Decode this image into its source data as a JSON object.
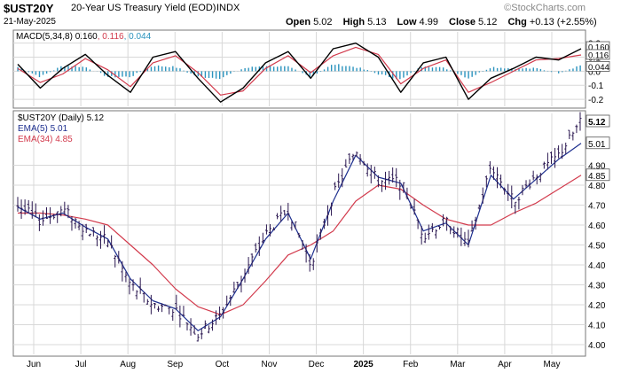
{
  "header": {
    "symbol": "$UST20Y",
    "description": "20-Year US Treasury Yield (EOD)",
    "exchange": "INDX",
    "date": "21-May-2025",
    "watermark": "©StockCharts.com",
    "stats": {
      "open_label": "Open",
      "open": "5.02",
      "high_label": "High",
      "high": "5.13",
      "low_label": "Low",
      "low": "4.99",
      "close_label": "Close",
      "close": "5.12",
      "chg_label": "Chg",
      "chg": "+0.13 (+2.55%)"
    }
  },
  "macd_legend": {
    "label": "MACD(5,34,8)",
    "macd": "0.160",
    "signal": "0.116",
    "hist": "0.044"
  },
  "price_legend": {
    "label": "$UST20Y (Daily) 5.12",
    "ema5": "EMA(5) 5.01",
    "ema34": "EMA(34) 4.85"
  },
  "colors": {
    "bars": "#2a1750",
    "ema5": "#1d2f8f",
    "ema34": "#d23a4c",
    "macd": "#000000",
    "signal": "#d23a4c",
    "hist": "#2b93be",
    "grid": "#d8d8d8"
  },
  "chart_data": [
    {
      "type": "line",
      "title": "MACD(5,34,8)",
      "y_ticks": [
        "0.2",
        "0.1",
        "0.0",
        "-0.1",
        "-0.2"
      ],
      "ylim": [
        -0.25,
        0.28
      ],
      "right_labels": [
        "0.160",
        "0.116",
        "0.044"
      ],
      "series": [
        {
          "name": "MACD",
          "x": [
            0,
            10,
            20,
            30,
            40,
            50,
            60,
            70,
            80,
            90,
            100,
            110,
            120,
            130,
            140,
            150,
            160,
            170,
            180,
            190,
            200,
            210,
            220,
            230,
            240,
            250
          ],
          "values": [
            0.05,
            -0.12,
            0.02,
            0.12,
            -0.03,
            -0.15,
            0.1,
            0.14,
            -0.05,
            -0.22,
            -0.12,
            0.06,
            0.14,
            -0.05,
            0.16,
            0.2,
            0.1,
            -0.15,
            0.06,
            0.1,
            -0.2,
            -0.05,
            0.02,
            0.1,
            0.08,
            0.16
          ]
        },
        {
          "name": "Signal",
          "x": [
            0,
            10,
            20,
            30,
            40,
            50,
            60,
            70,
            80,
            90,
            100,
            110,
            120,
            130,
            140,
            150,
            160,
            170,
            180,
            190,
            200,
            210,
            220,
            230,
            240,
            250
          ],
          "values": [
            0.02,
            -0.08,
            -0.02,
            0.09,
            0.01,
            -0.11,
            0.06,
            0.11,
            -0.01,
            -0.17,
            -0.14,
            0.02,
            0.11,
            -0.01,
            0.11,
            0.17,
            0.12,
            -0.09,
            0.02,
            0.08,
            -0.15,
            -0.08,
            0.0,
            0.08,
            0.09,
            0.116
          ]
        },
        {
          "name": "Histogram",
          "x": [
            0,
            10,
            20,
            30,
            40,
            50,
            60,
            70,
            80,
            90,
            100,
            110,
            120,
            130,
            140,
            150,
            160,
            170,
            180,
            190,
            200,
            210,
            220,
            230,
            240,
            250
          ],
          "values": [
            0.03,
            -0.04,
            0.04,
            0.03,
            -0.04,
            -0.04,
            0.04,
            0.03,
            -0.04,
            -0.05,
            0.02,
            0.04,
            0.03,
            -0.04,
            0.05,
            0.03,
            -0.02,
            -0.06,
            0.04,
            0.02,
            -0.05,
            0.03,
            0.02,
            0.02,
            -0.01,
            0.044
          ]
        }
      ]
    },
    {
      "type": "ohlc",
      "title": "$UST20Y (Daily) 5.12",
      "x_ticks": [
        "Jun",
        "Jul",
        "Aug",
        "Sep",
        "Oct",
        "Nov",
        "Dec",
        "2025",
        "Feb",
        "Mar",
        "Apr",
        "May"
      ],
      "y_ticks": [
        "5.12",
        "5.01",
        "4.90",
        "4.85",
        "4.80",
        "4.70",
        "4.60",
        "4.50",
        "4.40",
        "4.30",
        "4.20",
        "4.10",
        "4.00"
      ],
      "ylim": [
        3.96,
        5.16
      ],
      "series": [
        {
          "name": "$UST20Y",
          "x": [
            0,
            10,
            20,
            30,
            40,
            50,
            60,
            70,
            80,
            90,
            100,
            110,
            120,
            130,
            140,
            150,
            160,
            170,
            180,
            190,
            200,
            210,
            220,
            230,
            240,
            250
          ],
          "values": [
            4.7,
            4.62,
            4.68,
            4.58,
            4.52,
            4.3,
            4.2,
            4.18,
            4.05,
            4.15,
            4.35,
            4.55,
            4.68,
            4.4,
            4.75,
            4.98,
            4.82,
            4.82,
            4.55,
            4.62,
            4.5,
            4.9,
            4.72,
            4.85,
            4.95,
            5.12
          ]
        },
        {
          "name": "EMA(5) 5.01",
          "x": [
            0,
            10,
            20,
            30,
            40,
            50,
            60,
            70,
            80,
            90,
            100,
            110,
            120,
            130,
            140,
            150,
            160,
            170,
            180,
            190,
            200,
            210,
            220,
            230,
            240,
            250
          ],
          "values": [
            4.69,
            4.63,
            4.66,
            4.59,
            4.53,
            4.33,
            4.22,
            4.18,
            4.07,
            4.14,
            4.33,
            4.53,
            4.66,
            4.43,
            4.72,
            4.95,
            4.84,
            4.81,
            4.57,
            4.61,
            4.5,
            4.85,
            4.73,
            4.83,
            4.93,
            5.01
          ]
        },
        {
          "name": "EMA(34) 4.85",
          "x": [
            0,
            10,
            20,
            30,
            40,
            50,
            60,
            70,
            80,
            90,
            100,
            110,
            120,
            130,
            140,
            150,
            160,
            170,
            180,
            190,
            200,
            210,
            220,
            230,
            240,
            250
          ],
          "values": [
            4.66,
            4.66,
            4.65,
            4.63,
            4.6,
            4.5,
            4.4,
            4.28,
            4.19,
            4.15,
            4.2,
            4.32,
            4.45,
            4.5,
            4.57,
            4.72,
            4.8,
            4.78,
            4.7,
            4.63,
            4.6,
            4.6,
            4.66,
            4.71,
            4.78,
            4.85
          ]
        }
      ]
    }
  ]
}
